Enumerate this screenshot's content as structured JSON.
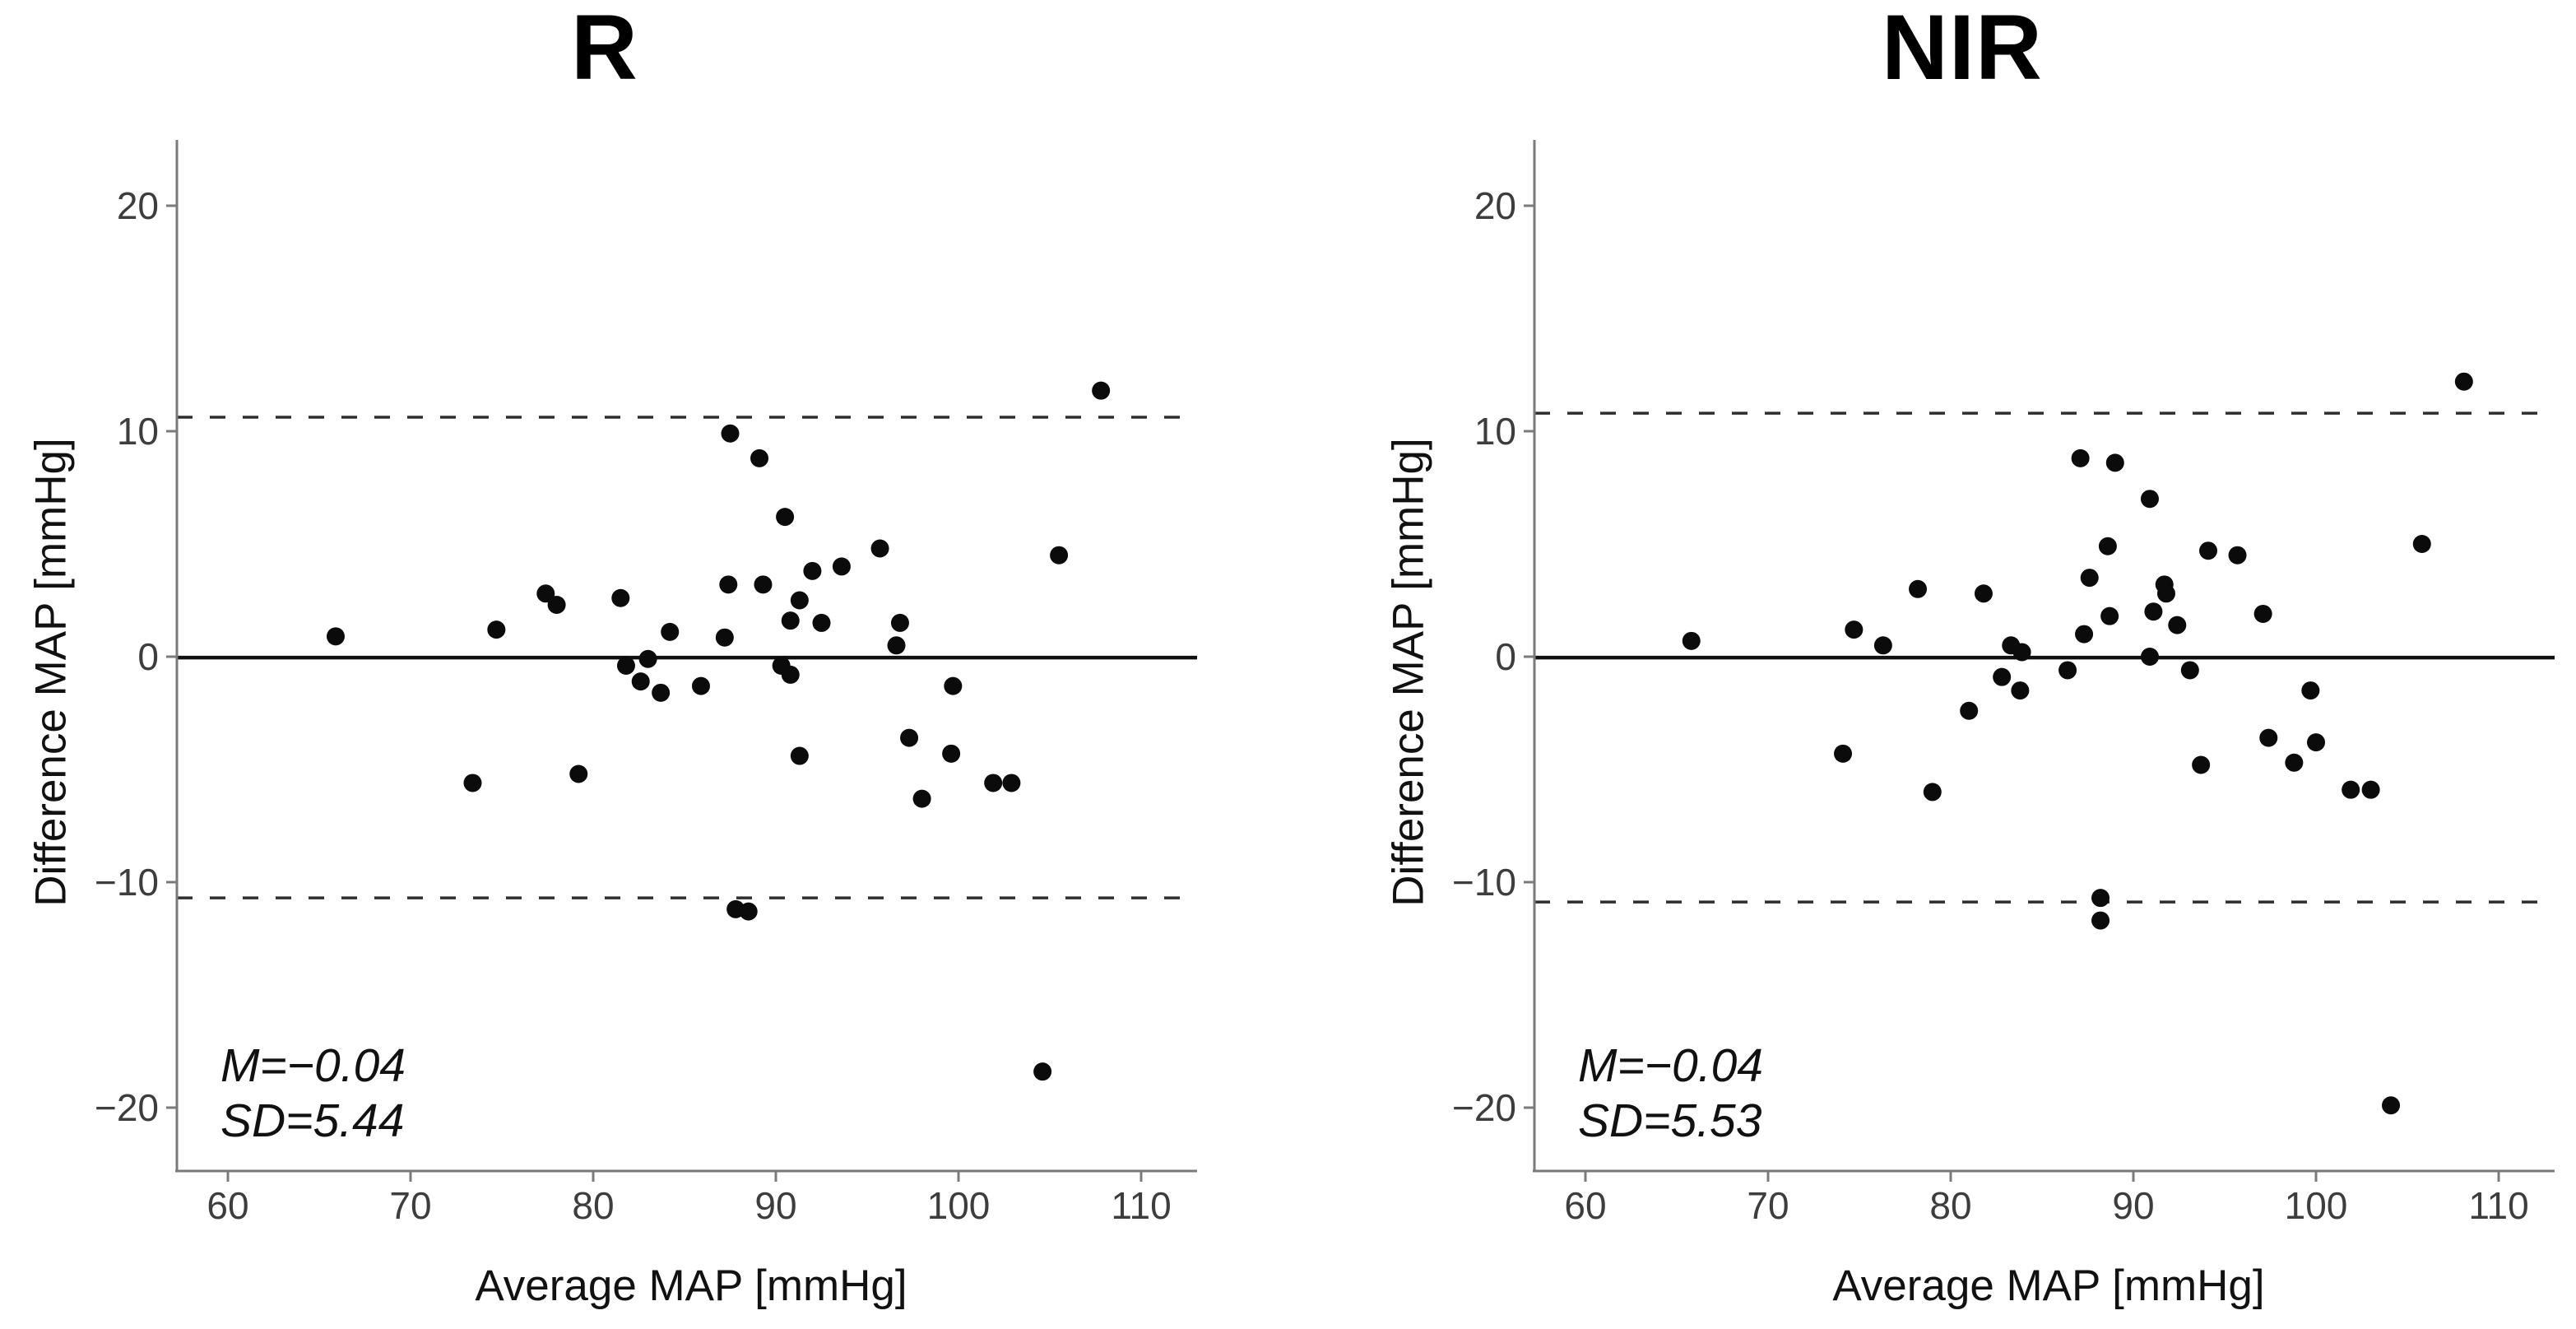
{
  "figure": {
    "background_color": "#ffffff",
    "description": "Two side-by-side Bland-Altman scatter plots comparing MAP measurements"
  },
  "styles": {
    "dot_color": "#0b0b0b",
    "axis_color": "#7a7a7a",
    "tick_label_color": "#3d3d3d",
    "mean_line_color": "#101010",
    "loa_line_color": "#2e2e2e",
    "title_color": "#000000"
  },
  "chart_data": [
    {
      "type": "scatter",
      "title": "R",
      "xlabel": "Average MAP [mmHg]",
      "ylabel": "Difference MAP [mmHg]",
      "x_ticks": [
        60,
        70,
        80,
        90,
        100,
        110
      ],
      "y_ticks": [
        20,
        10,
        0,
        -10,
        -20
      ],
      "y_tick_labels": [
        "20",
        "10",
        "0",
        "−10",
        "−20"
      ],
      "xlim": [
        57.2,
        113.1
      ],
      "ylim": [
        -22.8,
        22.9
      ],
      "grid": false,
      "legend": "none",
      "mean": -0.04,
      "sd": 5.44,
      "upper_loa": 10.62,
      "lower_loa": -10.7,
      "annotation_lines": [
        "M=−0.04",
        "SD=5.44"
      ],
      "points": [
        [
          65.9,
          0.9
        ],
        [
          74.7,
          1.2
        ],
        [
          77.4,
          2.8
        ],
        [
          78.0,
          2.3
        ],
        [
          81.5,
          2.6
        ],
        [
          84.2,
          1.1
        ],
        [
          81.8,
          -0.4
        ],
        [
          83.0,
          -0.1
        ],
        [
          82.6,
          -1.1
        ],
        [
          83.7,
          -1.6
        ],
        [
          85.9,
          -1.3
        ],
        [
          73.4,
          -5.6
        ],
        [
          79.2,
          -5.2
        ],
        [
          87.5,
          9.9
        ],
        [
          89.1,
          8.8
        ],
        [
          90.5,
          6.2
        ],
        [
          92.0,
          3.8
        ],
        [
          93.6,
          4.0
        ],
        [
          95.7,
          4.8
        ],
        [
          87.4,
          3.2
        ],
        [
          89.3,
          3.2
        ],
        [
          91.3,
          2.5
        ],
        [
          90.8,
          1.6
        ],
        [
          92.5,
          1.5
        ],
        [
          96.8,
          1.5
        ],
        [
          87.2,
          0.85
        ],
        [
          96.6,
          0.5
        ],
        [
          90.3,
          -0.4
        ],
        [
          90.8,
          -0.8
        ],
        [
          99.7,
          -1.3
        ],
        [
          105.5,
          4.5
        ],
        [
          107.8,
          11.8
        ],
        [
          97.3,
          -3.6
        ],
        [
          91.3,
          -4.4
        ],
        [
          99.6,
          -4.3
        ],
        [
          101.9,
          -5.6
        ],
        [
          102.9,
          -5.6
        ],
        [
          98.0,
          -6.3
        ],
        [
          87.8,
          -11.2
        ],
        [
          88.5,
          -11.3
        ],
        [
          104.6,
          -18.4
        ]
      ]
    },
    {
      "type": "scatter",
      "title": "NIR",
      "xlabel": "Average MAP [mmHg]",
      "ylabel": "Difference MAP [mmHg]",
      "x_ticks": [
        60,
        70,
        80,
        90,
        100,
        110
      ],
      "y_ticks": [
        20,
        10,
        0,
        -10,
        -20
      ],
      "y_tick_labels": [
        "20",
        "10",
        "0",
        "−10",
        "−20"
      ],
      "xlim": [
        57.2,
        113.1
      ],
      "ylim": [
        -22.8,
        22.9
      ],
      "grid": false,
      "legend": "none",
      "mean": -0.04,
      "sd": 5.53,
      "upper_loa": 10.8,
      "lower_loa": -10.88,
      "annotation_lines": [
        "M=−0.04",
        "SD=5.53"
      ],
      "points": [
        [
          65.8,
          0.7
        ],
        [
          74.7,
          1.2
        ],
        [
          76.3,
          0.5
        ],
        [
          78.2,
          3.0
        ],
        [
          81.8,
          2.8
        ],
        [
          83.3,
          0.5
        ],
        [
          83.9,
          0.2
        ],
        [
          82.8,
          -0.9
        ],
        [
          83.8,
          -1.5
        ],
        [
          86.4,
          -0.6
        ],
        [
          81.0,
          -2.4
        ],
        [
          74.1,
          -4.3
        ],
        [
          79.0,
          -6.0
        ],
        [
          87.1,
          8.8
        ],
        [
          89.0,
          8.6
        ],
        [
          90.9,
          7.0
        ],
        [
          88.6,
          4.9
        ],
        [
          94.1,
          4.7
        ],
        [
          95.7,
          4.5
        ],
        [
          105.8,
          5.0
        ],
        [
          87.6,
          3.5
        ],
        [
          91.7,
          3.2
        ],
        [
          91.8,
          2.8
        ],
        [
          88.7,
          1.8
        ],
        [
          91.1,
          2.0
        ],
        [
          92.4,
          1.4
        ],
        [
          97.1,
          1.9
        ],
        [
          87.3,
          1.0
        ],
        [
          90.9,
          0.0
        ],
        [
          93.1,
          -0.6
        ],
        [
          99.7,
          -1.5
        ],
        [
          97.4,
          -3.6
        ],
        [
          100.0,
          -3.8
        ],
        [
          98.8,
          -4.7
        ],
        [
          93.7,
          -4.8
        ],
        [
          101.9,
          -5.9
        ],
        [
          103.0,
          -5.9
        ],
        [
          88.2,
          -10.7
        ],
        [
          88.2,
          -11.7
        ],
        [
          104.1,
          -19.9
        ],
        [
          108.1,
          12.2
        ]
      ]
    }
  ]
}
